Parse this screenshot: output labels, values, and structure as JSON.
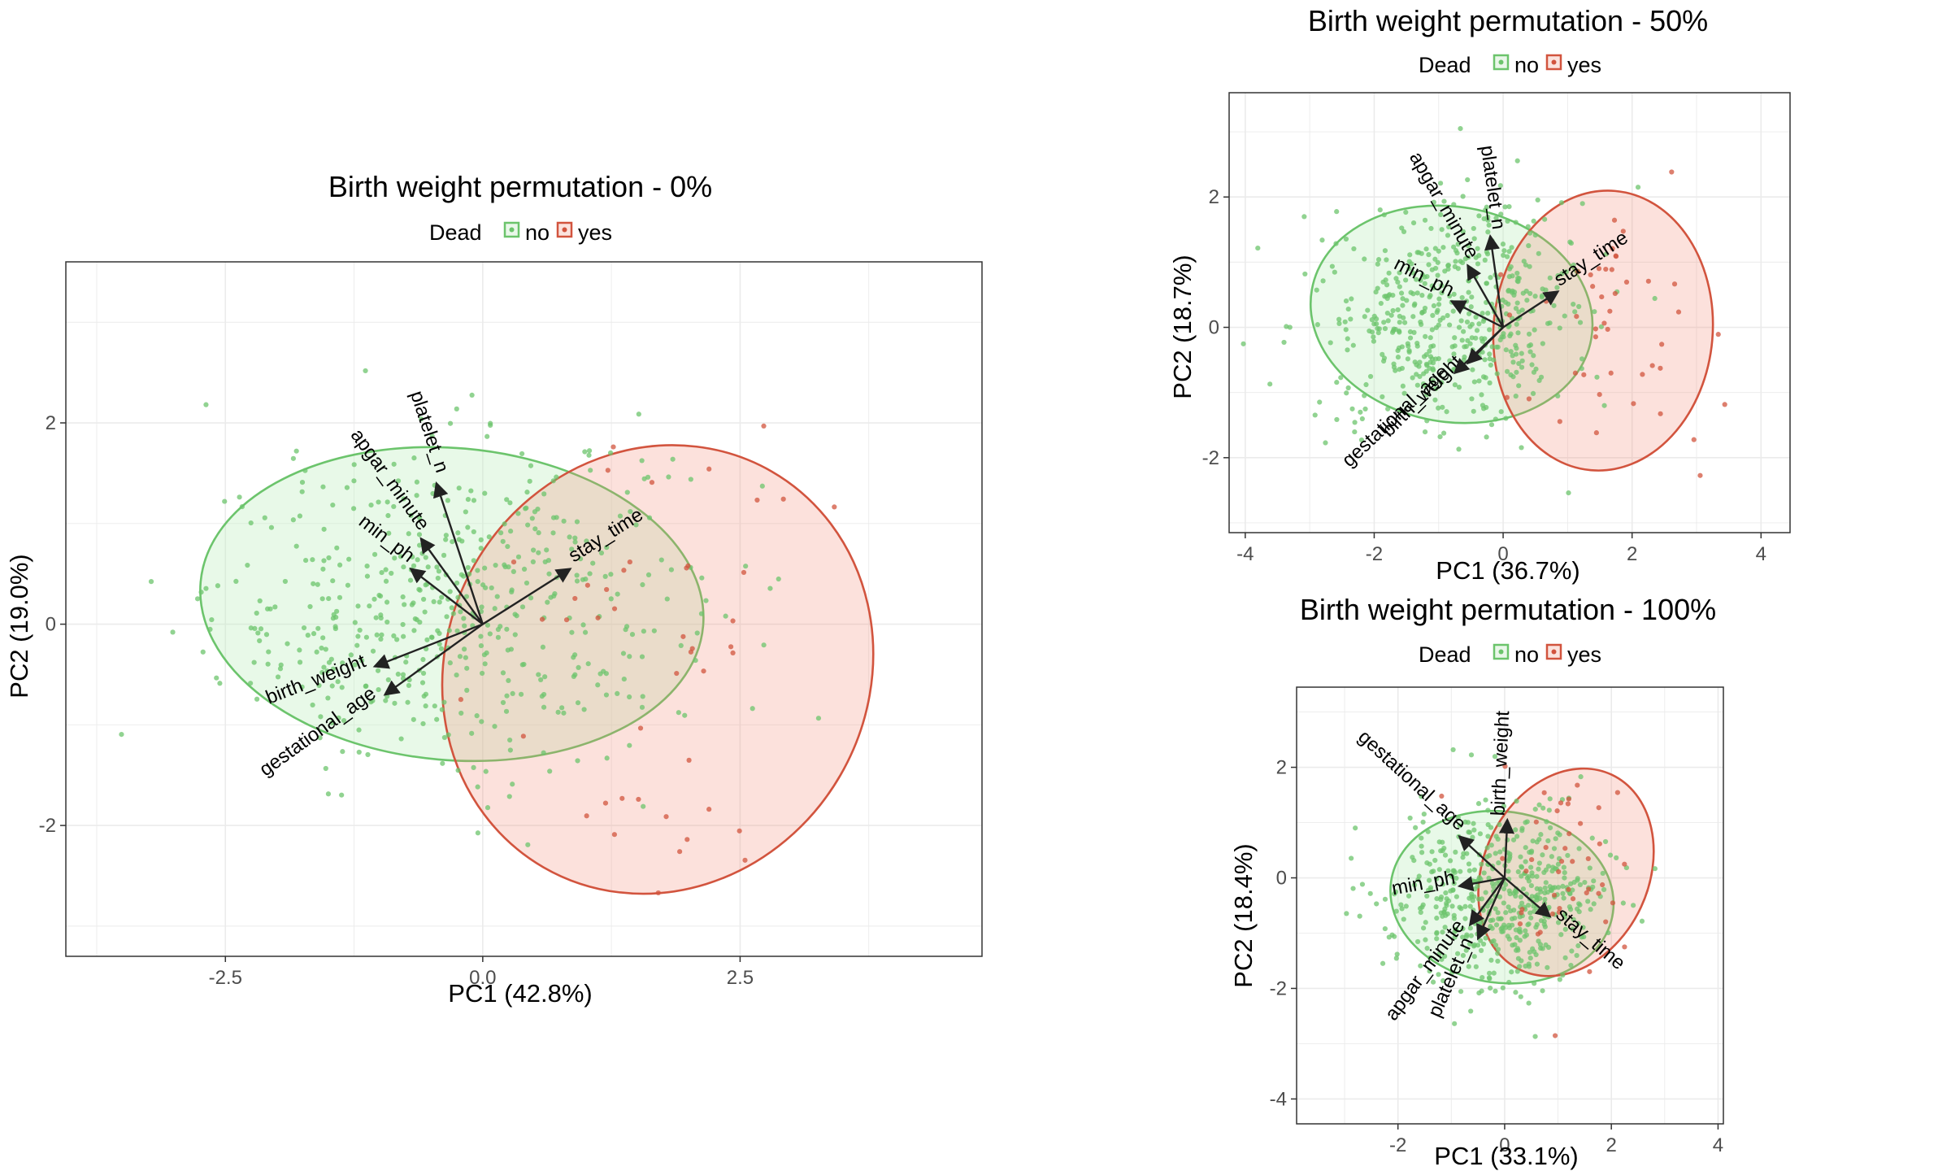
{
  "legend_title": "Dead",
  "legend_items": [
    {
      "label": "no",
      "color": "#6cc46c"
    },
    {
      "label": "yes",
      "color": "#d2543e"
    }
  ],
  "chart_data": [
    {
      "type": "scatter",
      "subtype": "pca-biplot",
      "title": "Birth weight permutation - 0%",
      "xlabel": "PC1 (42.8%)",
      "ylabel": "PC2 (19.0%)",
      "xlim": [
        -4.05,
        4.85
      ],
      "ylim": [
        -3.3,
        3.6
      ],
      "xticks": [
        -2.5,
        0.0,
        2.5
      ],
      "xtick_labels": [
        "-2.5",
        "0.0",
        "2.5"
      ],
      "yticks": [
        -2,
        0,
        2
      ],
      "ytick_labels": [
        "-2",
        "0",
        "2"
      ],
      "grid": true,
      "legend_position": "top",
      "ellipses": [
        {
          "group": "no",
          "cx": -0.3,
          "cy": 0.2,
          "rx": 2.45,
          "ry": 1.55,
          "angle_deg": -5
        },
        {
          "group": "yes",
          "cx": 1.7,
          "cy": -0.45,
          "rx": 2.05,
          "ry": 2.27,
          "angle_deg": -30
        }
      ],
      "vectors": [
        {
          "name": "platelet_n",
          "x": -0.45,
          "y": 1.4
        },
        {
          "name": "apgar_minute",
          "x": -0.6,
          "y": 0.85
        },
        {
          "name": "min_ph",
          "x": -0.7,
          "y": 0.55
        },
        {
          "name": "stay_time",
          "x": 0.85,
          "y": 0.55
        },
        {
          "name": "birth_weight",
          "x": -1.05,
          "y": -0.42
        },
        {
          "name": "gestational_age",
          "x": -0.95,
          "y": -0.7
        }
      ],
      "series": [
        {
          "name": "no",
          "n": 520,
          "cx": -0.3,
          "cy": 0.2,
          "sx": 1.15,
          "sy": 0.8,
          "rot_deg": -5
        },
        {
          "name": "yes",
          "n": 45,
          "cx": 1.7,
          "cy": -0.45,
          "sx": 0.9,
          "sy": 1.0,
          "rot_deg": -30
        }
      ]
    },
    {
      "type": "scatter",
      "subtype": "pca-biplot",
      "title": "Birth weight permutation - 50%",
      "xlabel": "PC1 (36.7%)",
      "ylabel": "PC2 (18.7%)",
      "xlim": [
        -4.25,
        4.45
      ],
      "ylim": [
        -3.15,
        3.6
      ],
      "xticks": [
        -4,
        -2,
        0,
        2,
        4
      ],
      "xtick_labels": [
        "-4",
        "-2",
        "0",
        "2",
        "4"
      ],
      "yticks": [
        -2,
        0,
        2
      ],
      "ytick_labels": [
        "-2",
        "0",
        "2"
      ],
      "grid": true,
      "legend_position": "top",
      "ellipses": [
        {
          "group": "no",
          "cx": -0.8,
          "cy": 0.2,
          "rx": 2.2,
          "ry": 1.65,
          "angle_deg": -10
        },
        {
          "group": "yes",
          "cx": 1.55,
          "cy": -0.05,
          "rx": 1.7,
          "ry": 2.15,
          "angle_deg": -5
        }
      ],
      "vectors": [
        {
          "name": "platelet_n",
          "x": -0.2,
          "y": 1.4
        },
        {
          "name": "apgar_minute",
          "x": -0.55,
          "y": 0.95
        },
        {
          "name": "min_ph",
          "x": -0.8,
          "y": 0.4
        },
        {
          "name": "stay_time",
          "x": 0.85,
          "y": 0.55
        },
        {
          "name": "birth_weight",
          "x": -0.55,
          "y": -0.55
        },
        {
          "name": "gestational_age",
          "x": -0.75,
          "y": -0.7
        }
      ],
      "series": [
        {
          "name": "no",
          "n": 520,
          "cx": -0.8,
          "cy": 0.2,
          "sx": 1.05,
          "sy": 0.85,
          "rot_deg": -10
        },
        {
          "name": "yes",
          "n": 45,
          "cx": 1.55,
          "cy": -0.05,
          "sx": 0.85,
          "sy": 1.05,
          "rot_deg": -5
        }
      ]
    },
    {
      "type": "scatter",
      "subtype": "pca-biplot",
      "title": "Birth weight permutation - 100%",
      "xlabel": "PC1 (33.1%)",
      "ylabel": "PC2 (18.4%)",
      "xlim": [
        -3.9,
        4.1
      ],
      "ylim": [
        -4.45,
        3.45
      ],
      "xticks": [
        -2,
        0,
        2,
        4
      ],
      "xtick_labels": [
        "-2",
        "0",
        "2",
        "4"
      ],
      "yticks": [
        -4,
        -2,
        0,
        2
      ],
      "ytick_labels": [
        "-4",
        "-2",
        "0",
        "2"
      ],
      "grid": true,
      "legend_position": "top",
      "ellipses": [
        {
          "group": "no",
          "cx": -0.05,
          "cy": -0.35,
          "rx": 2.1,
          "ry": 1.55,
          "angle_deg": -8
        },
        {
          "group": "yes",
          "cx": 1.15,
          "cy": 0.1,
          "rx": 1.55,
          "ry": 1.95,
          "angle_deg": -25
        }
      ],
      "vectors": [
        {
          "name": "birth_weight",
          "x": 0.05,
          "y": 1.05
        },
        {
          "name": "gestational_age",
          "x": -0.85,
          "y": 0.75
        },
        {
          "name": "min_ph",
          "x": -0.85,
          "y": -0.15
        },
        {
          "name": "apgar_minute",
          "x": -0.65,
          "y": -0.85
        },
        {
          "name": "platelet_n",
          "x": -0.5,
          "y": -1.1
        },
        {
          "name": "stay_time",
          "x": 0.85,
          "y": -0.7
        }
      ],
      "series": [
        {
          "name": "no",
          "n": 520,
          "cx": -0.05,
          "cy": -0.35,
          "sx": 1.0,
          "sy": 0.8,
          "rot_deg": -8
        },
        {
          "name": "yes",
          "n": 45,
          "cx": 1.15,
          "cy": 0.1,
          "sx": 0.75,
          "sy": 0.95,
          "rot_deg": -25
        }
      ]
    }
  ]
}
